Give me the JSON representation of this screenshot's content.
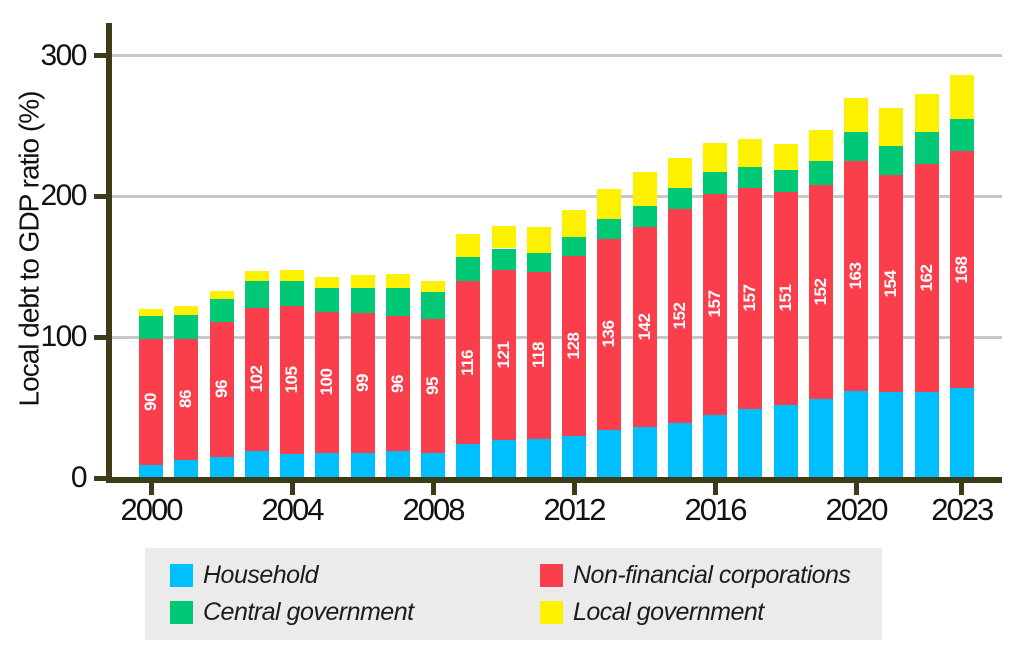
{
  "colors": {
    "household": "#00bfff",
    "non_financial_corporations": "#fb3e4c",
    "central_government": "#00c875",
    "local_government": "#fdf100",
    "axis": "#3e3b19",
    "gridline": "#c8c8c8",
    "legend_background": "#ebebeb",
    "bar_label_text": "#ffffff"
  },
  "y_axis": {
    "title": "Local debt to GDP ratio (%)",
    "ticks": [
      0,
      100,
      200,
      300
    ]
  },
  "x_axis": {
    "tick_years": [
      2000,
      2004,
      2008,
      2012,
      2016,
      2020,
      2023
    ]
  },
  "legend": {
    "items": [
      {
        "label": "Household",
        "color_key": "household"
      },
      {
        "label": "Non-financial corporations",
        "color_key": "non_financial_corporations"
      },
      {
        "label": "Central government",
        "color_key": "central_government"
      },
      {
        "label": "Local government",
        "color_key": "local_government"
      }
    ]
  },
  "chart_data": {
    "type": "bar",
    "stacked": true,
    "title": "",
    "xlabel": "",
    "ylabel": "Local debt to GDP ratio (%)",
    "ylim": [
      0,
      320
    ],
    "grid": "horizontal, behind bars, at 100/200/300",
    "legend_position": "bottom",
    "categories": [
      2000,
      2001,
      2002,
      2003,
      2004,
      2005,
      2006,
      2007,
      2008,
      2009,
      2010,
      2011,
      2012,
      2013,
      2014,
      2015,
      2016,
      2017,
      2018,
      2019,
      2020,
      2021,
      2022,
      2023
    ],
    "series": [
      {
        "name": "Household",
        "color_key": "household",
        "values": [
          9,
          13,
          15,
          19,
          17,
          18,
          18,
          19,
          18,
          24,
          27,
          28,
          30,
          34,
          36,
          39,
          45,
          49,
          52,
          56,
          62,
          61,
          61,
          64
        ]
      },
      {
        "name": "Non-financial corporations",
        "color_key": "non_financial_corporations",
        "values": [
          90,
          86,
          96,
          102,
          105,
          100,
          99,
          96,
          95,
          116,
          121,
          118,
          128,
          136,
          142,
          152,
          157,
          157,
          151,
          152,
          163,
          154,
          162,
          168
        ],
        "data_labels_shown": true
      },
      {
        "name": "Central government",
        "color_key": "central_government",
        "values": [
          16,
          17,
          16,
          19,
          18,
          17,
          18,
          20,
          19,
          17,
          15,
          14,
          13,
          14,
          15,
          15,
          15,
          15,
          16,
          17,
          21,
          21,
          23,
          23
        ]
      },
      {
        "name": "Local government",
        "color_key": "local_government",
        "values": [
          5,
          6,
          6,
          7,
          8,
          8,
          9,
          10,
          8,
          16,
          16,
          18,
          19,
          21,
          24,
          21,
          21,
          20,
          18,
          22,
          24,
          27,
          27,
          31
        ]
      }
    ],
    "bar_value_labels": {
      "series": "Non-financial corporations",
      "values": [
        90,
        86,
        96,
        102,
        105,
        100,
        99,
        96,
        95,
        116,
        121,
        118,
        128,
        136,
        142,
        152,
        157,
        157,
        151,
        152,
        163,
        154,
        162,
        168
      ],
      "style": "white, rotated 90deg, centered in red segment"
    }
  }
}
